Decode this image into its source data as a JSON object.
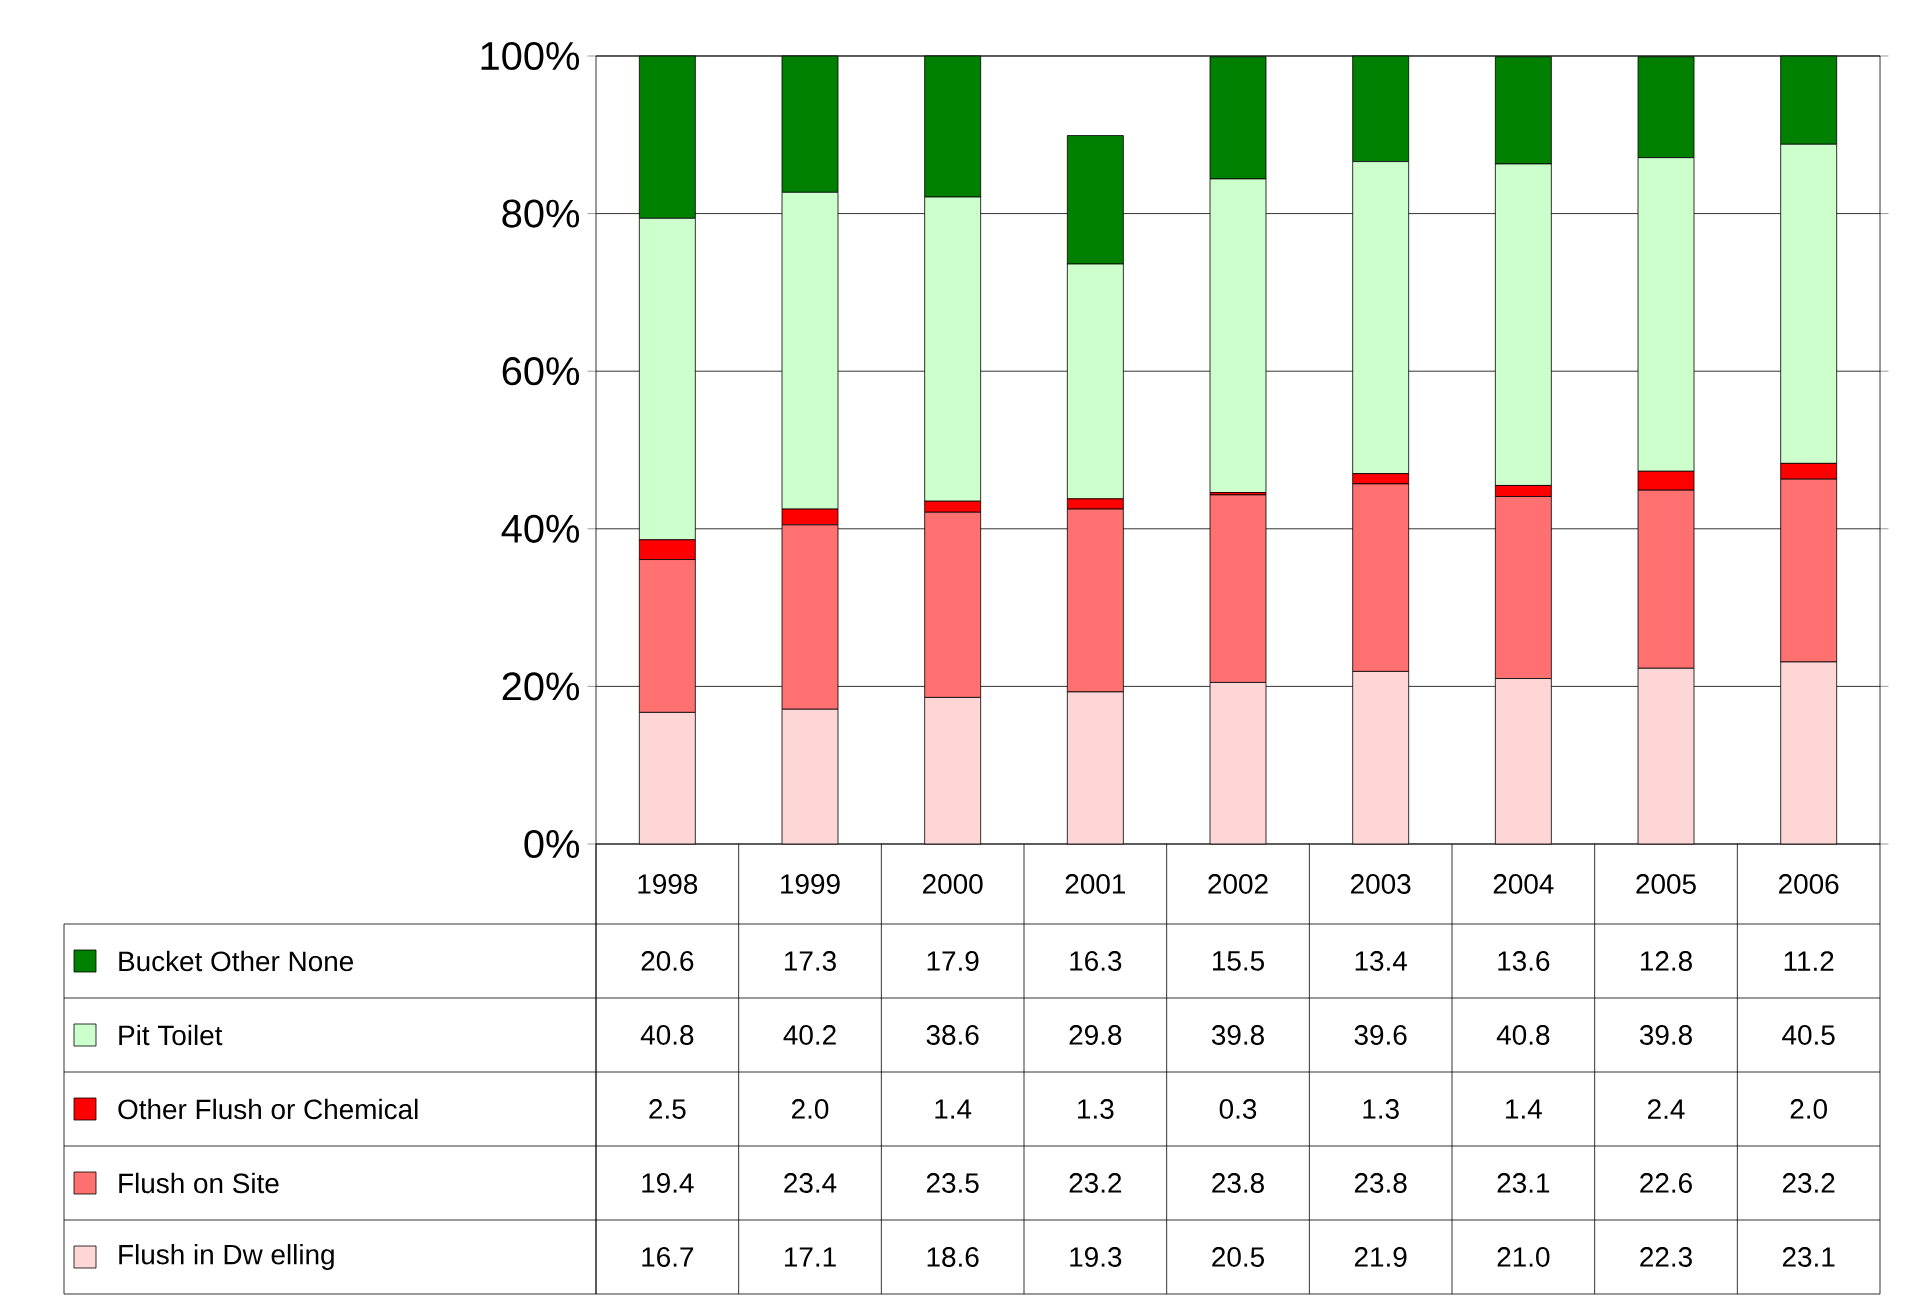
{
  "chart_data": {
    "type": "bar",
    "stacked": true,
    "grid": "y",
    "legend": "bottom",
    "categories": [
      "1998",
      "1999",
      "2000",
      "2001",
      "2002",
      "2003",
      "2004",
      "2005",
      "2006"
    ],
    "ylim": [
      0,
      100
    ],
    "yticks": [
      {
        "value": 0,
        "label": "0%"
      },
      {
        "value": 20,
        "label": "20%"
      },
      {
        "value": 40,
        "label": "40%"
      },
      {
        "value": 60,
        "label": "60%"
      },
      {
        "value": 80,
        "label": "80%"
      },
      {
        "value": 100,
        "label": "100%"
      }
    ],
    "series": [
      {
        "name": "Flush in Dw elling",
        "color": "#ffd6d6",
        "values": [
          16.7,
          17.1,
          18.6,
          19.3,
          20.5,
          21.9,
          21.0,
          22.3,
          23.1
        ],
        "value_labels": [
          "16.7",
          "17.1",
          "18.6",
          "19.3",
          "20.5",
          "21.9",
          "21.0",
          "22.3",
          "23.1"
        ]
      },
      {
        "name": "Flush on Site",
        "color": "#ff7070",
        "values": [
          19.4,
          23.4,
          23.5,
          23.2,
          23.8,
          23.8,
          23.1,
          22.6,
          23.2
        ],
        "value_labels": [
          "19.4",
          "23.4",
          "23.5",
          "23.2",
          "23.8",
          "23.8",
          "23.1",
          "22.6",
          "23.2"
        ]
      },
      {
        "name": "Other Flush or Chemical",
        "color": "#ff0000",
        "values": [
          2.5,
          2.0,
          1.4,
          1.3,
          0.3,
          1.3,
          1.4,
          2.4,
          2.0
        ],
        "value_labels": [
          "2.5",
          "2.0",
          "1.4",
          "1.3",
          "0.3",
          "1.3",
          "1.4",
          "2.4",
          "2.0"
        ]
      },
      {
        "name": "Pit Toilet",
        "color": "#ccffcc",
        "values": [
          40.8,
          40.2,
          38.6,
          29.8,
          39.8,
          39.6,
          40.8,
          39.8,
          40.5
        ],
        "value_labels": [
          "40.8",
          "40.2",
          "38.6",
          "29.8",
          "39.8",
          "39.6",
          "40.8",
          "39.8",
          "40.5"
        ]
      },
      {
        "name": "Bucket Other None",
        "color": "#008000",
        "values": [
          20.6,
          17.3,
          17.9,
          16.3,
          15.5,
          13.4,
          13.6,
          12.8,
          11.2
        ],
        "value_labels": [
          "20.6",
          "17.3",
          "17.9",
          "16.3",
          "15.5",
          "13.4",
          "13.6",
          "12.8",
          "11.2"
        ]
      }
    ]
  }
}
